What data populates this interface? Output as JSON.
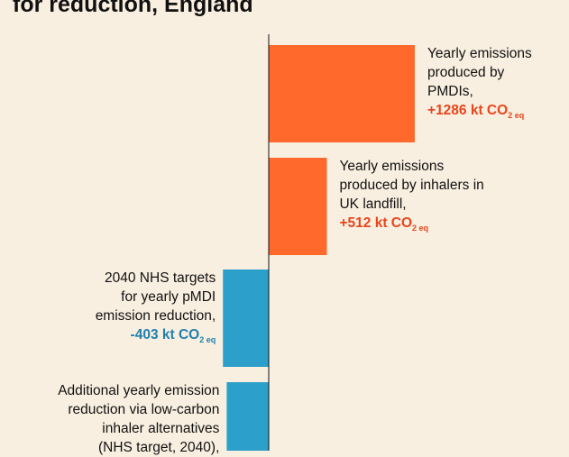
{
  "title": "for reduction, England",
  "chart_data": {
    "type": "bar",
    "orientation": "horizontal",
    "xlim": [
      -550,
      1450
    ],
    "colors": {
      "positive": "#ff6a2c",
      "negative": "#2c9fca"
    },
    "bars": [
      {
        "lines": [
          "Yearly emissions",
          "produced by",
          "PMDIs,"
        ],
        "value": 1286,
        "value_text": "+1286 kt CO",
        "unit_sub": "2 eq",
        "side": "right"
      },
      {
        "lines": [
          "Yearly emissions",
          "produced by inhalers in",
          "UK landfill,"
        ],
        "value": 512,
        "value_text": "+512 kt CO",
        "unit_sub": "2 eq",
        "side": "right"
      },
      {
        "lines": [
          "2040 NHS targets",
          "for yearly pMDI",
          "emission reduction,"
        ],
        "value": -403,
        "value_text": "-403 kt CO",
        "unit_sub": "2 eq",
        "side": "left"
      },
      {
        "lines": [
          "Additional yearly emission",
          "reduction via low-carbon",
          "inhaler alternatives",
          "(NHS target, 2040),"
        ],
        "value": -370,
        "value_text": "",
        "unit_sub": "",
        "side": "left"
      }
    ]
  }
}
